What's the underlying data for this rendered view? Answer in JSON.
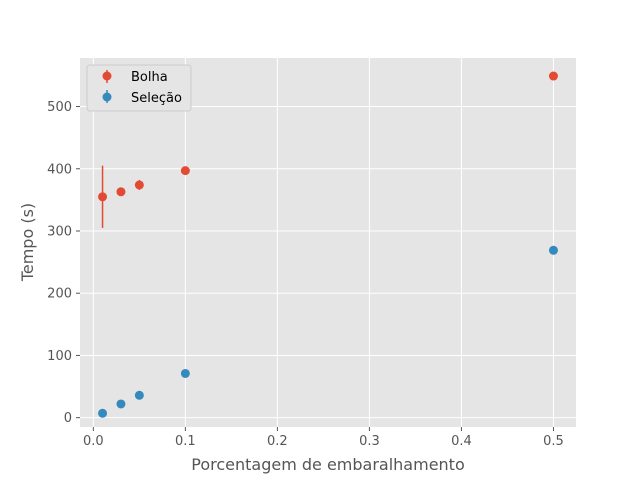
{
  "chart_data": {
    "type": "scatter",
    "xlabel": "Porcentagem de embaralhamento",
    "ylabel": "Tempo (s)",
    "xlim": [
      -0.0145,
      0.5245
    ],
    "ylim": [
      -15,
      578
    ],
    "xticks": [
      0.0,
      0.1,
      0.2,
      0.3,
      0.4,
      0.5
    ],
    "xtick_labels": [
      "0.0",
      "0.1",
      "0.2",
      "0.3",
      "0.4",
      "0.5"
    ],
    "yticks": [
      0,
      100,
      200,
      300,
      400,
      500
    ],
    "ytick_labels": [
      "0",
      "100",
      "200",
      "300",
      "400",
      "500"
    ],
    "grid": true,
    "legend_position": "upper-left",
    "series": [
      {
        "name": "Bolha",
        "color": "#E24A33",
        "points": [
          {
            "x": 0.01,
            "y": 355,
            "err": 50
          },
          {
            "x": 0.03,
            "y": 363,
            "err": 5
          },
          {
            "x": 0.05,
            "y": 374,
            "err": 8
          },
          {
            "x": 0.1,
            "y": 397,
            "err": 4
          },
          {
            "x": 0.5,
            "y": 549,
            "err": 2
          }
        ]
      },
      {
        "name": "Seleção",
        "color": "#348ABD",
        "points": [
          {
            "x": 0.01,
            "y": 7,
            "err": 1
          },
          {
            "x": 0.03,
            "y": 22,
            "err": 1
          },
          {
            "x": 0.05,
            "y": 36,
            "err": 1
          },
          {
            "x": 0.1,
            "y": 71,
            "err": 1
          },
          {
            "x": 0.5,
            "y": 269,
            "err": 1
          }
        ]
      }
    ]
  }
}
